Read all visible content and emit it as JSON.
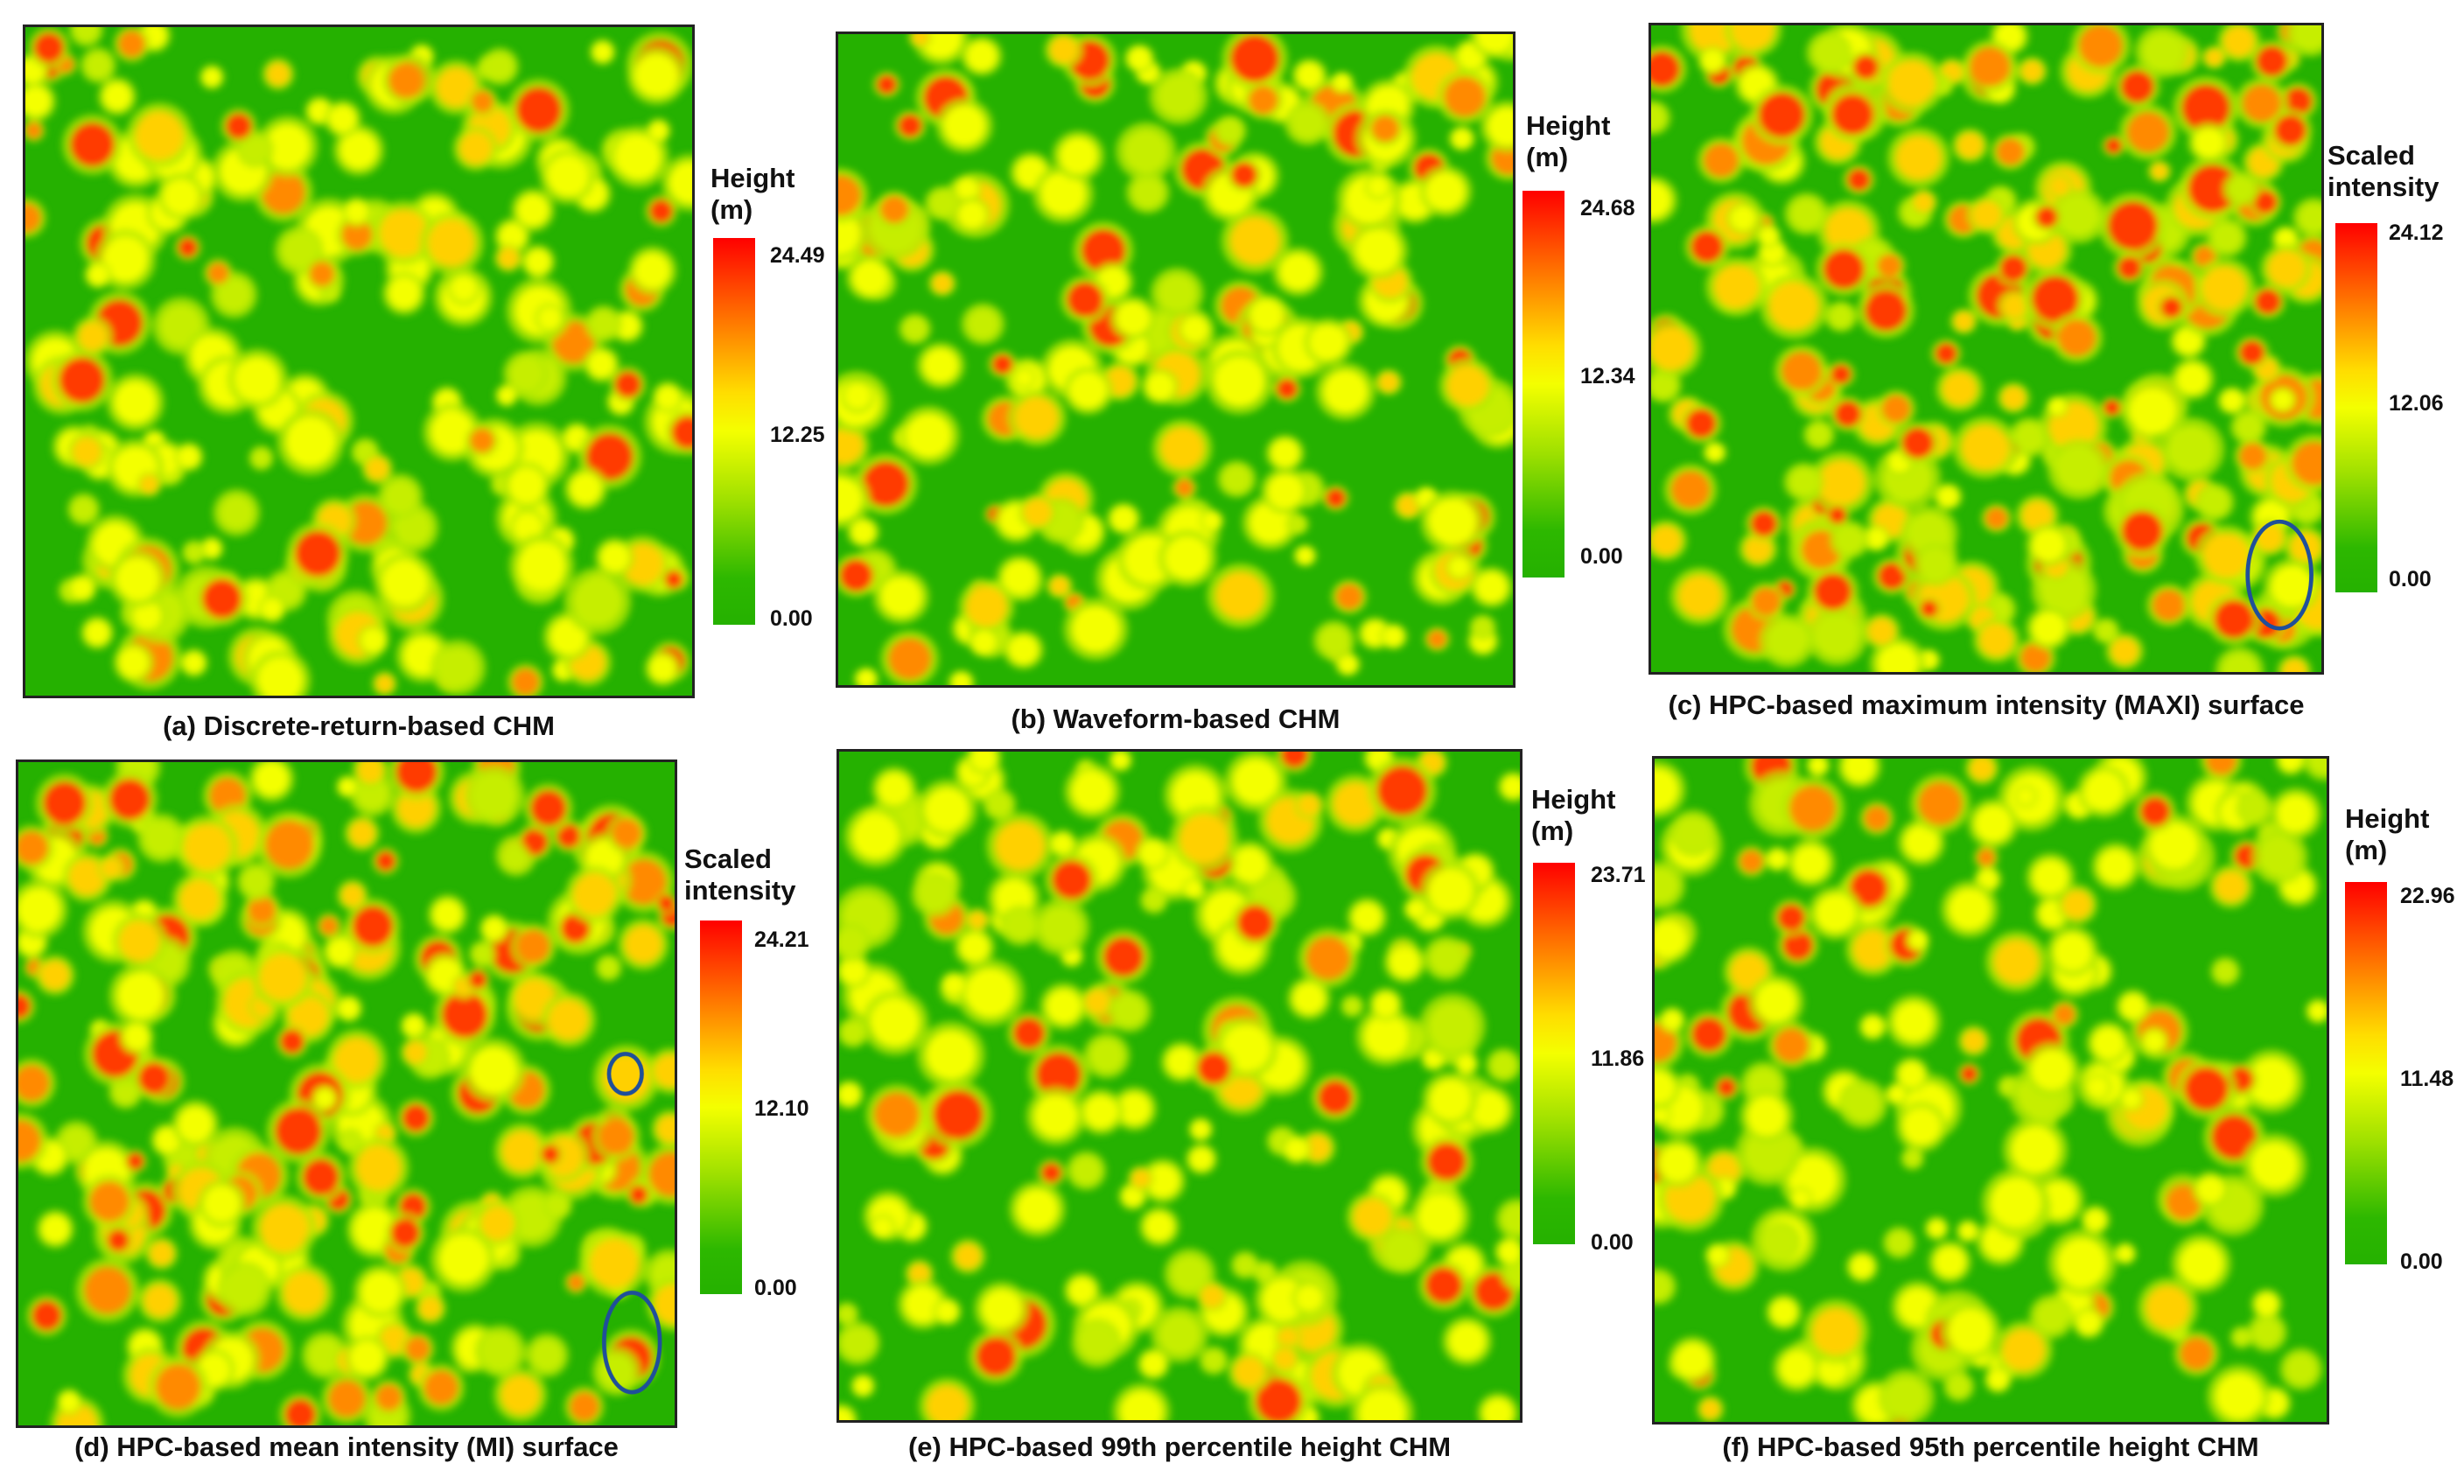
{
  "colors": {
    "low": "#25b100",
    "mid": "#f4ff00",
    "high": "#ff0000",
    "annotation": "#1f4f9a"
  },
  "panels": [
    {
      "id": "a",
      "legend": {
        "line1": "Height",
        "line2": "(m)",
        "max": "24.49",
        "mid": "12.25",
        "min": "0.00"
      },
      "caption": "(a) Discrete-return-based CHM",
      "density": 0.55,
      "highness": 0.35,
      "ellipses": 0
    },
    {
      "id": "b",
      "legend": {
        "line1": "Height",
        "line2": "(m)",
        "max": "24.68",
        "mid": "12.34",
        "min": "0.00"
      },
      "caption": "(b) Waveform-based CHM",
      "density": 0.5,
      "highness": 0.35,
      "ellipses": 0
    },
    {
      "id": "c",
      "legend": {
        "line1": "Scaled",
        "line2": "intensity",
        "max": "24.12",
        "mid": "12.06",
        "min": "0.00"
      },
      "caption": "(c) HPC-based maximum intensity (MAXI) surface",
      "density": 0.9,
      "highness": 0.75,
      "ellipses": 1
    },
    {
      "id": "d",
      "legend": {
        "line1": "Scaled",
        "line2": "intensity",
        "max": "24.21",
        "mid": "12.10",
        "min": "0.00"
      },
      "caption": "(d) HPC-based mean intensity (MI) surface",
      "density": 0.85,
      "highness": 0.65,
      "ellipses": 2
    },
    {
      "id": "e",
      "legend": {
        "line1": "Height",
        "line2": "(m)",
        "max": "23.71",
        "mid": "11.86",
        "min": "0.00"
      },
      "caption": "(e) HPC-based 99th percentile height CHM",
      "density": 0.5,
      "highness": 0.3,
      "ellipses": 0
    },
    {
      "id": "f",
      "legend": {
        "line1": "Height",
        "line2": "(m)",
        "max": "22.96",
        "mid": "11.48",
        "min": "0.00"
      },
      "caption": "(f) HPC-based 95th percentile height CHM",
      "density": 0.45,
      "highness": 0.28,
      "ellipses": 0
    }
  ]
}
